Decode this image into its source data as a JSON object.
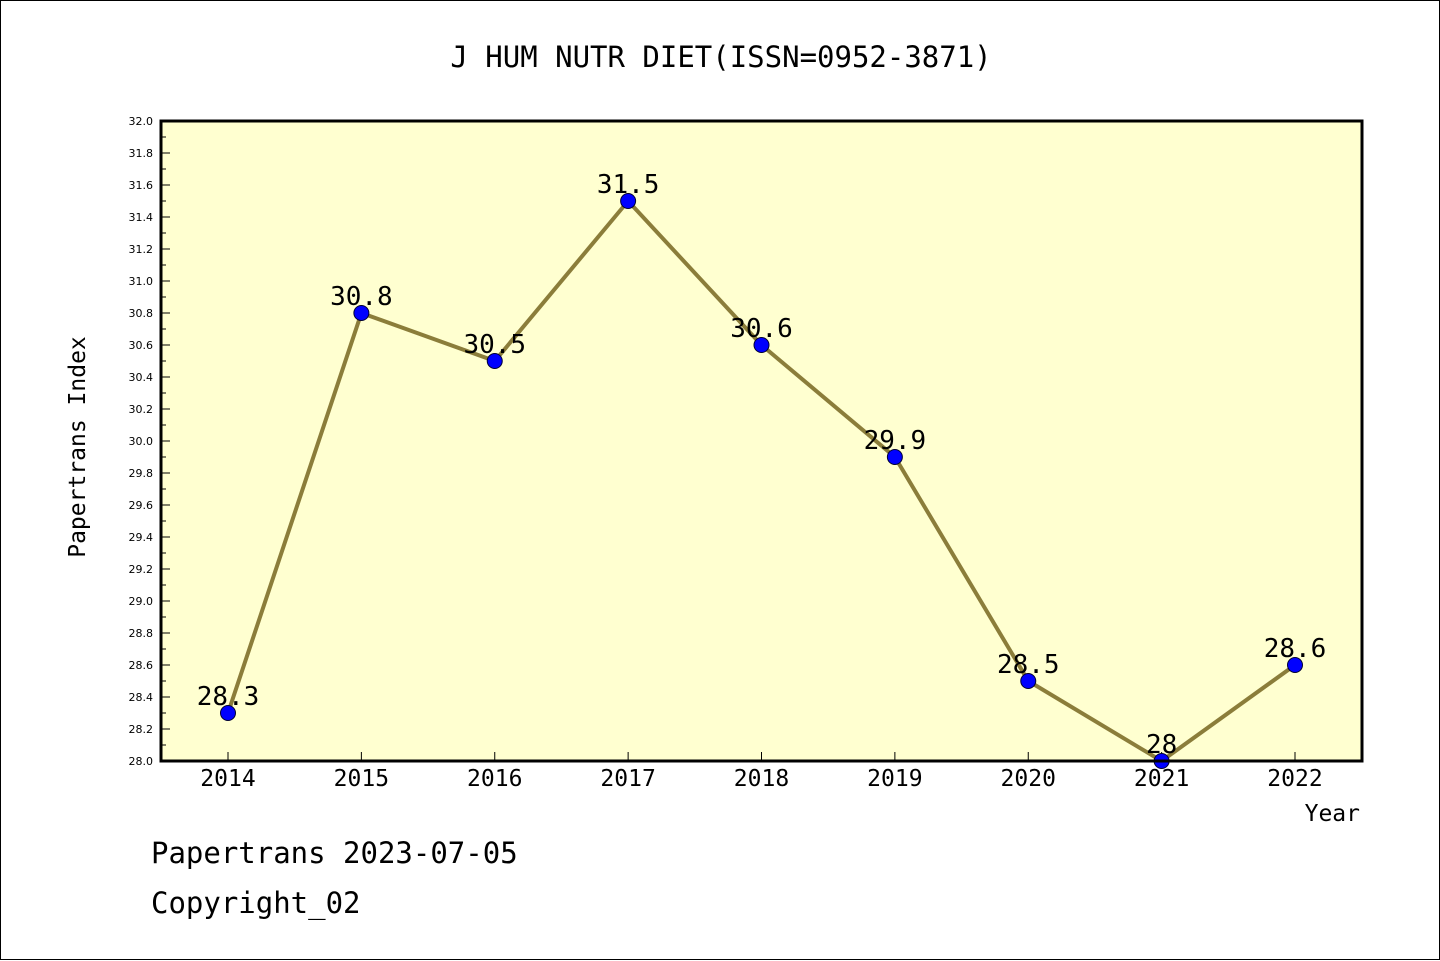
{
  "chart_data": {
    "type": "line",
    "title": "J HUM NUTR DIET(ISSN=0952-3871)",
    "xlabel": "Year",
    "ylabel": "Papertrans Index",
    "categories": [
      "2014",
      "2015",
      "2016",
      "2017",
      "2018",
      "2019",
      "2020",
      "2021",
      "2022"
    ],
    "values": [
      28.3,
      30.8,
      30.5,
      31.5,
      30.6,
      29.9,
      28.5,
      28.0,
      28.6
    ],
    "value_labels": [
      "28.3",
      "30.8",
      "30.5",
      "31.5",
      "30.6",
      "29.9",
      "28.5",
      "28",
      "28.6"
    ],
    "ylim": [
      28.0,
      32.0
    ],
    "y_ticks": [
      "28.0",
      "28.2",
      "28.4",
      "28.6",
      "28.8",
      "29.0",
      "29.2",
      "29.4",
      "29.6",
      "29.8",
      "30.0",
      "30.2",
      "30.4",
      "30.6",
      "30.8",
      "31.0",
      "31.2",
      "31.4",
      "31.6",
      "31.8",
      "32.0"
    ],
    "grid": false,
    "legend": "none",
    "colors": {
      "plot_background": "#ffffd0",
      "line": "#8b7d3a",
      "marker": "#0000ff"
    }
  },
  "footer": {
    "line1": "Papertrans 2023-07-05",
    "line2": "Copyright_02"
  }
}
